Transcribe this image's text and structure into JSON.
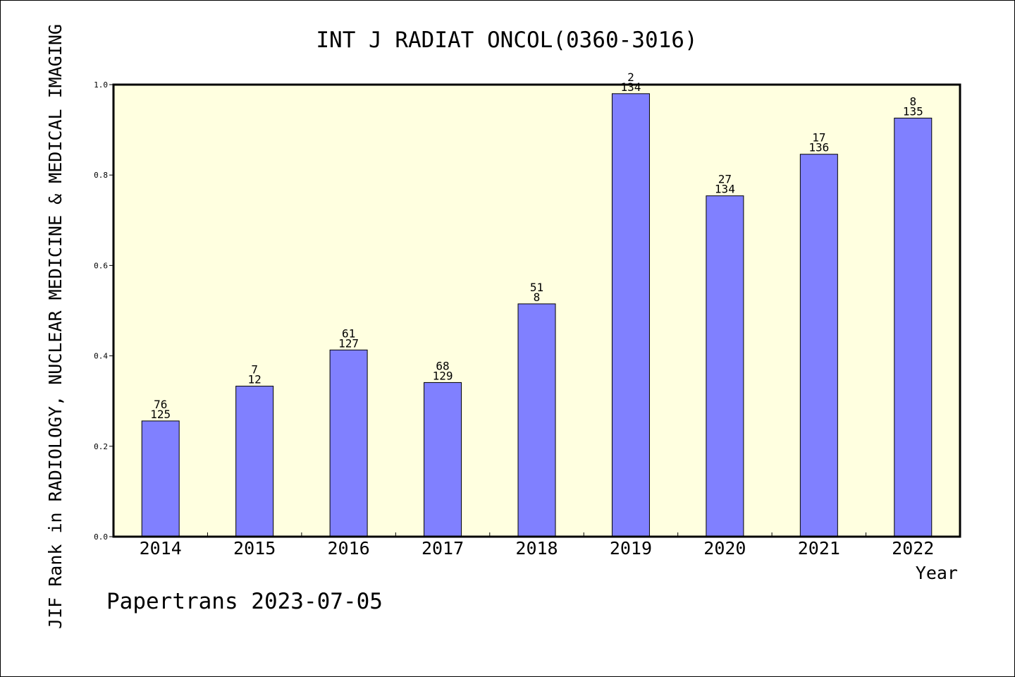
{
  "chart_data": {
    "type": "bar",
    "title": "INT J RADIAT ONCOL(0360-3016)",
    "xlabel": "Year",
    "ylabel": "JIF Rank in RADIOLOGY, NUCLEAR MEDICINE & MEDICAL IMAGING",
    "categories": [
      "2014",
      "2015",
      "2016",
      "2017",
      "2018",
      "2019",
      "2020",
      "2021",
      "2022"
    ],
    "values": [
      0.256,
      0.333,
      0.413,
      0.341,
      0.515,
      0.98,
      0.754,
      0.846,
      0.926
    ],
    "annotations": [
      {
        "top": "76",
        "bottom": "125"
      },
      {
        "top": "7",
        "bottom": "12"
      },
      {
        "top": "61",
        "bottom": "127"
      },
      {
        "top": "68",
        "bottom": "129"
      },
      {
        "top": "51",
        "bottom": "8"
      },
      {
        "top": "2",
        "bottom": "134"
      },
      {
        "top": "27",
        "bottom": "134"
      },
      {
        "top": "17",
        "bottom": "136"
      },
      {
        "top": "8",
        "bottom": "135"
      }
    ],
    "ylim": [
      0,
      1.0
    ],
    "yticks": [
      "0.0",
      "0.2",
      "0.4",
      "0.6",
      "0.8",
      "1.0"
    ],
    "grid": false,
    "colors": {
      "bar_fill": "#8080ff",
      "plot_background": "#ffffe0",
      "axis": "#000000"
    }
  },
  "footer": "Papertrans 2023-07-05"
}
